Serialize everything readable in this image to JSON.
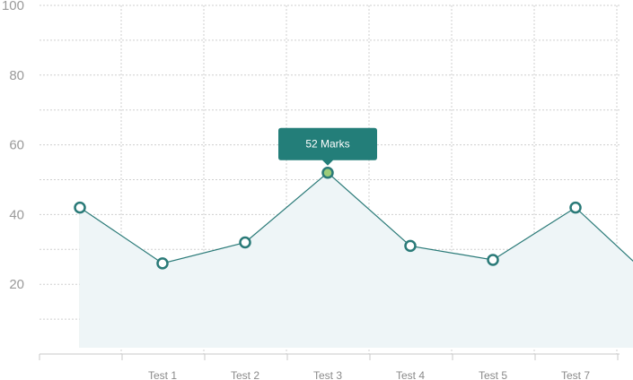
{
  "chart_data": {
    "type": "area",
    "categories": [
      "",
      "Test 1",
      "Test 2",
      "Test 3",
      "Test 4",
      "Test 5",
      "Test 7",
      ""
    ],
    "values": [
      42,
      26,
      32,
      52,
      31,
      27,
      42,
      20
    ],
    "y_ticks": [
      "100",
      "80",
      "60",
      "40",
      "20"
    ],
    "ylim": [
      0,
      100
    ],
    "grid": true,
    "highlight_index": 3,
    "tooltip_text": "52 Marks",
    "colors": {
      "line": "#2a7a78",
      "area": "#eef5f7",
      "tooltip_bg": "#237e79",
      "point_fill": "#ffffff",
      "grid": "#cfcfcf",
      "axis": "#c8c8c8"
    }
  }
}
